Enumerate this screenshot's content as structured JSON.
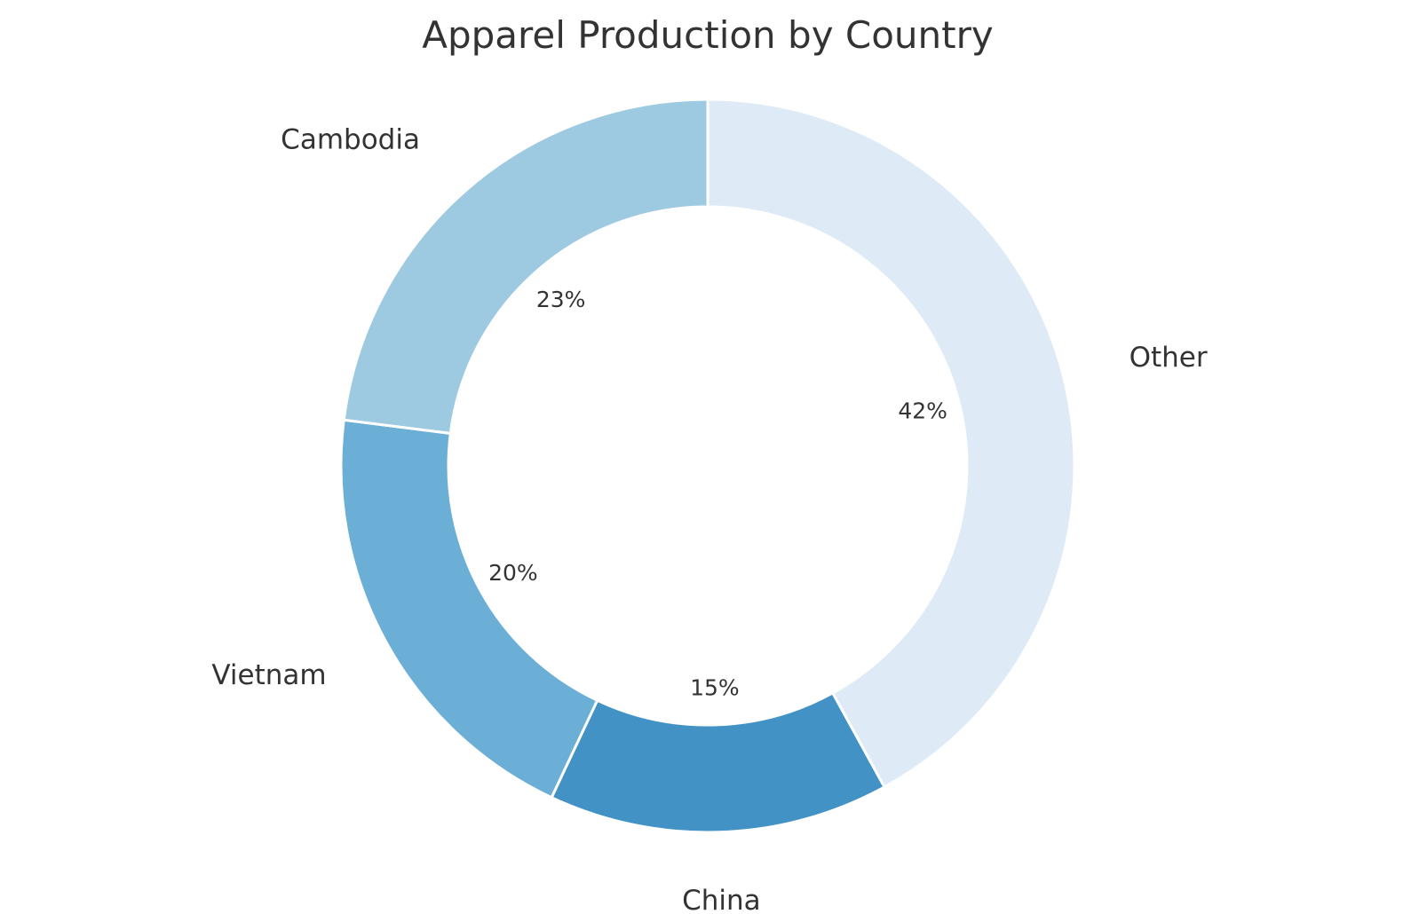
{
  "chart_data": {
    "type": "pie",
    "variant": "donut",
    "title": "Apparel Production by Country",
    "start": "top",
    "direction": "clockwise",
    "categories": [
      "Other",
      "China",
      "Vietnam",
      "Cambodia"
    ],
    "values": [
      42,
      15,
      20,
      23
    ],
    "value_labels": [
      "42%",
      "15%",
      "20%",
      "23%"
    ],
    "colors": [
      "#deebf7",
      "#4292c6",
      "#6baed6",
      "#9ecae1"
    ],
    "legend": "none"
  }
}
